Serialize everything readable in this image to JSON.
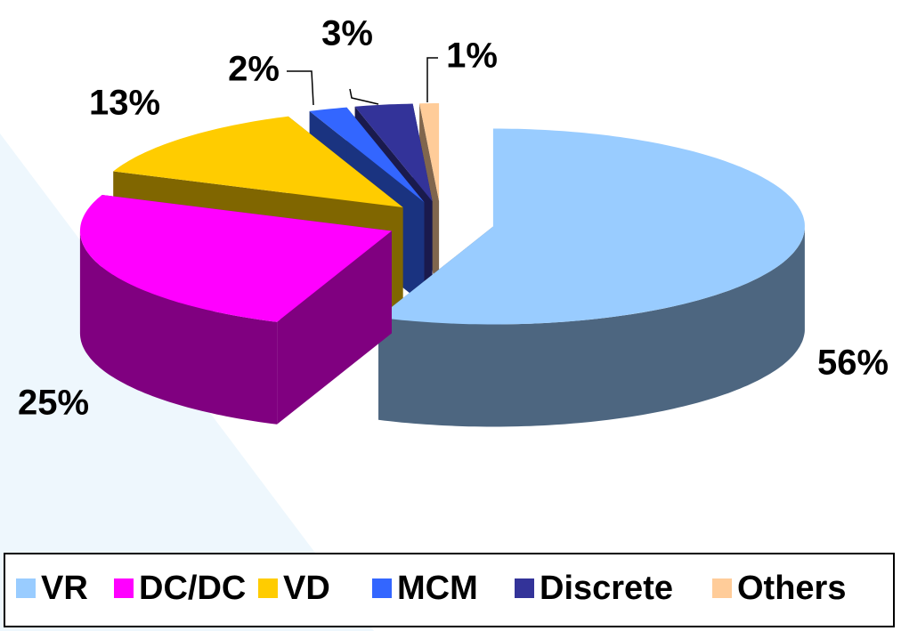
{
  "chart_data": {
    "type": "pie3d",
    "categories": [
      "VR",
      "DC/DC",
      "VD",
      "MCM",
      "Discrete",
      "Others"
    ],
    "values": [
      56,
      25,
      13,
      2,
      3,
      1
    ],
    "value_labels": [
      "56%",
      "25%",
      "13%",
      "2%",
      "3%",
      "1%"
    ],
    "colors": [
      "#99ccff",
      "#ff00ff",
      "#ffcc00",
      "#3366ff",
      "#333399",
      "#ffcc99"
    ],
    "legend": "bottom"
  }
}
